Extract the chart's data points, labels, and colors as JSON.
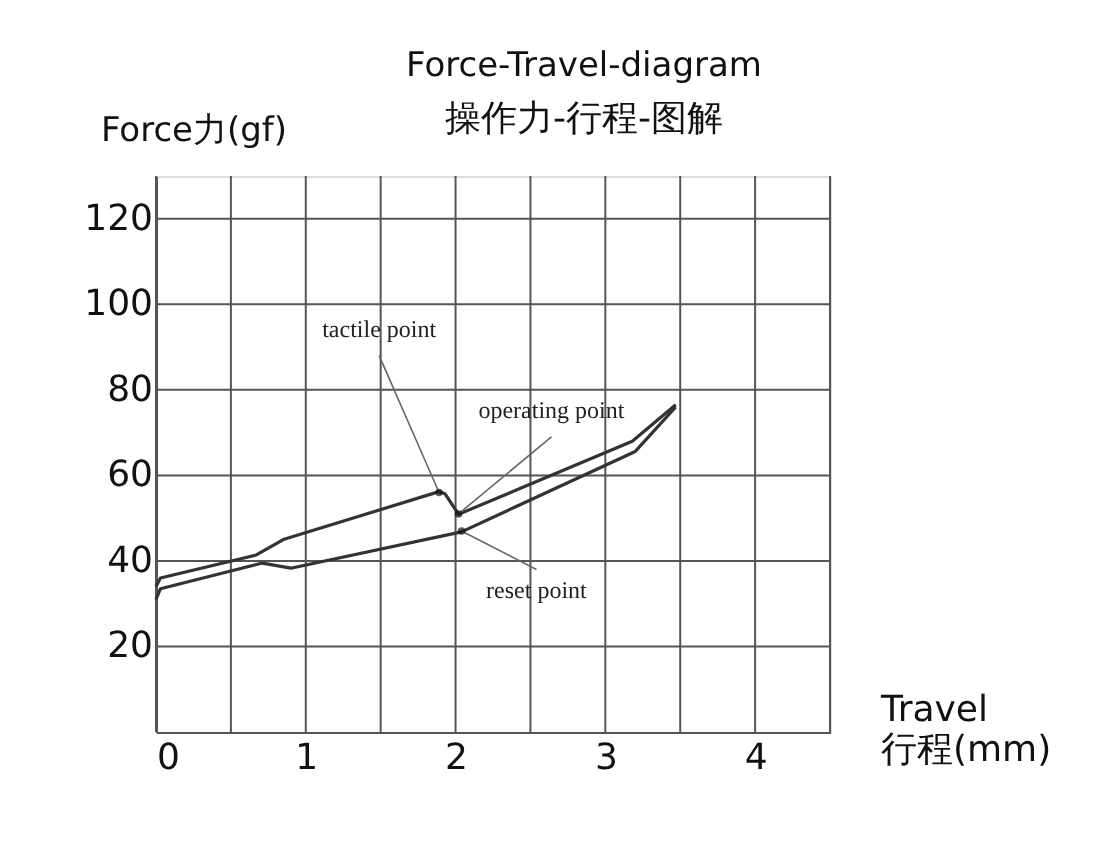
{
  "chart_data": {
    "type": "line",
    "title": "Force-Travel-diagram",
    "subtitle": "操作力-行程-图解",
    "xlabel": "Travel\n行程(mm)",
    "ylabel": "Force力(gf)",
    "series": [
      {
        "color": "#333333",
        "x": [
          0,
          0.03,
          0.67,
          0.85,
          1.89,
          1.93,
          2.02,
          3.18,
          3.47
        ],
        "values": [
          34,
          36,
          41.4,
          45,
          56.2,
          55.7,
          50.9,
          68,
          76.5
        ]
      },
      {
        "color": "#333333",
        "x": [
          0,
          0.03,
          0.71,
          0.9,
          2.04,
          3.2,
          3.47
        ],
        "values": [
          31,
          33.5,
          39.5,
          38.3,
          46.8,
          65.6,
          76
        ]
      }
    ],
    "annotations": [
      {
        "text": "tactile point",
        "x": 1.89,
        "y": 56
      },
      {
        "text": "operating point",
        "x": 2.02,
        "y": 51
      },
      {
        "text": "reset point",
        "x": 2.04,
        "y": 47
      }
    ],
    "xlim": [
      0,
      4.5
    ],
    "xticks": [
      0,
      {
        "value": 0.5,
        "label": null
      },
      1,
      {
        "value": 1.5,
        "label": null
      },
      2,
      {
        "value": 2.5,
        "label": null
      },
      3,
      {
        "value": 3.5,
        "label": null
      },
      4,
      {
        "value": 4.5,
        "label": null
      }
    ],
    "ylim": [
      0,
      130
    ],
    "yticks": [
      20,
      40,
      60,
      80,
      100,
      120
    ],
    "grid": true,
    "marker": "none",
    "line_style": "solid"
  }
}
